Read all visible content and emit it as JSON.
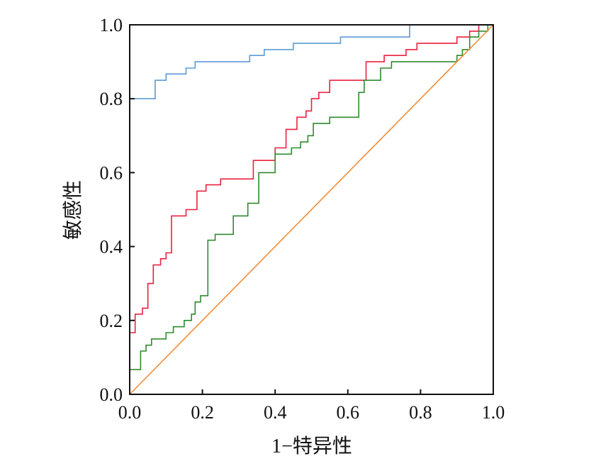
{
  "chart_data": {
    "type": "line",
    "xlabel": "1−特异性",
    "ylabel": "敏感性",
    "xlim": [
      0.0,
      1.0
    ],
    "ylim": [
      0.0,
      1.0
    ],
    "grid": false,
    "xticks": [
      "0.0",
      "0.2",
      "0.4",
      "0.6",
      "0.8",
      "1.0"
    ],
    "yticks": [
      "0.0",
      "0.2",
      "0.4",
      "0.6",
      "0.8",
      "1.0"
    ],
    "series": [
      {
        "color": "#5b9bd5",
        "step": true,
        "points": [
          [
            0,
            0.8
          ],
          [
            0.07,
            0.8
          ],
          [
            0.07,
            0.85
          ],
          [
            0.1,
            0.85
          ],
          [
            0.1,
            0.867
          ],
          [
            0.155,
            0.867
          ],
          [
            0.155,
            0.883
          ],
          [
            0.18,
            0.883
          ],
          [
            0.18,
            0.9
          ],
          [
            0.21,
            0.9
          ],
          [
            0.21,
            0.9
          ],
          [
            0.33,
            0.9
          ],
          [
            0.33,
            0.917
          ],
          [
            0.37,
            0.917
          ],
          [
            0.37,
            0.933
          ],
          [
            0.45,
            0.933
          ],
          [
            0.45,
            0.95
          ],
          [
            0.58,
            0.95
          ],
          [
            0.58,
            0.967
          ],
          [
            0.77,
            0.967
          ],
          [
            0.77,
            1.0
          ],
          [
            1.0,
            1.0
          ]
        ]
      },
      {
        "color": "#e8213f",
        "step": true,
        "points": [
          [
            0,
            0.167
          ],
          [
            0.015,
            0.167
          ],
          [
            0.015,
            0.217
          ],
          [
            0.035,
            0.217
          ],
          [
            0.035,
            0.233
          ],
          [
            0.05,
            0.233
          ],
          [
            0.05,
            0.3
          ],
          [
            0.065,
            0.3
          ],
          [
            0.065,
            0.35
          ],
          [
            0.085,
            0.35
          ],
          [
            0.085,
            0.367
          ],
          [
            0.1,
            0.367
          ],
          [
            0.1,
            0.383
          ],
          [
            0.115,
            0.383
          ],
          [
            0.115,
            0.483
          ],
          [
            0.155,
            0.483
          ],
          [
            0.155,
            0.5
          ],
          [
            0.185,
            0.5
          ],
          [
            0.185,
            0.55
          ],
          [
            0.21,
            0.55
          ],
          [
            0.21,
            0.567
          ],
          [
            0.25,
            0.567
          ],
          [
            0.25,
            0.583
          ],
          [
            0.34,
            0.583
          ],
          [
            0.34,
            0.633
          ],
          [
            0.4,
            0.633
          ],
          [
            0.4,
            0.667
          ],
          [
            0.43,
            0.667
          ],
          [
            0.43,
            0.717
          ],
          [
            0.46,
            0.717
          ],
          [
            0.46,
            0.75
          ],
          [
            0.485,
            0.75
          ],
          [
            0.485,
            0.767
          ],
          [
            0.5,
            0.767
          ],
          [
            0.5,
            0.8
          ],
          [
            0.52,
            0.8
          ],
          [
            0.52,
            0.817
          ],
          [
            0.55,
            0.817
          ],
          [
            0.55,
            0.85
          ],
          [
            0.65,
            0.85
          ],
          [
            0.65,
            0.9
          ],
          [
            0.7,
            0.9
          ],
          [
            0.7,
            0.917
          ],
          [
            0.76,
            0.917
          ],
          [
            0.76,
            0.933
          ],
          [
            0.79,
            0.933
          ],
          [
            0.79,
            0.95
          ],
          [
            0.9,
            0.95
          ],
          [
            0.9,
            0.967
          ],
          [
            0.935,
            0.967
          ],
          [
            0.935,
            0.983
          ],
          [
            0.96,
            0.983
          ],
          [
            0.96,
            1.0
          ],
          [
            1.0,
            1.0
          ]
        ]
      },
      {
        "color": "#2e8b2e",
        "step": true,
        "points": [
          [
            0,
            0.067
          ],
          [
            0.03,
            0.067
          ],
          [
            0.03,
            0.117
          ],
          [
            0.045,
            0.117
          ],
          [
            0.045,
            0.133
          ],
          [
            0.06,
            0.133
          ],
          [
            0.06,
            0.15
          ],
          [
            0.1,
            0.15
          ],
          [
            0.1,
            0.167
          ],
          [
            0.12,
            0.167
          ],
          [
            0.12,
            0.183
          ],
          [
            0.15,
            0.183
          ],
          [
            0.15,
            0.2
          ],
          [
            0.17,
            0.2
          ],
          [
            0.17,
            0.217
          ],
          [
            0.18,
            0.217
          ],
          [
            0.18,
            0.25
          ],
          [
            0.195,
            0.25
          ],
          [
            0.195,
            0.267
          ],
          [
            0.215,
            0.267
          ],
          [
            0.215,
            0.417
          ],
          [
            0.235,
            0.417
          ],
          [
            0.235,
            0.433
          ],
          [
            0.285,
            0.433
          ],
          [
            0.285,
            0.483
          ],
          [
            0.325,
            0.483
          ],
          [
            0.325,
            0.517
          ],
          [
            0.355,
            0.517
          ],
          [
            0.355,
            0.6
          ],
          [
            0.4,
            0.6
          ],
          [
            0.4,
            0.65
          ],
          [
            0.445,
            0.65
          ],
          [
            0.445,
            0.667
          ],
          [
            0.47,
            0.667
          ],
          [
            0.47,
            0.683
          ],
          [
            0.49,
            0.683
          ],
          [
            0.49,
            0.7
          ],
          [
            0.505,
            0.7
          ],
          [
            0.505,
            0.733
          ],
          [
            0.55,
            0.733
          ],
          [
            0.55,
            0.75
          ],
          [
            0.63,
            0.75
          ],
          [
            0.63,
            0.817
          ],
          [
            0.645,
            0.817
          ],
          [
            0.645,
            0.85
          ],
          [
            0.69,
            0.85
          ],
          [
            0.69,
            0.883
          ],
          [
            0.72,
            0.883
          ],
          [
            0.72,
            0.9
          ],
          [
            0.76,
            0.9
          ],
          [
            0.76,
            0.9
          ],
          [
            0.9,
            0.9
          ],
          [
            0.9,
            0.917
          ],
          [
            0.915,
            0.917
          ],
          [
            0.915,
            0.933
          ],
          [
            0.935,
            0.933
          ],
          [
            0.935,
            0.967
          ],
          [
            0.96,
            0.967
          ],
          [
            0.96,
            0.983
          ],
          [
            0.985,
            0.983
          ],
          [
            0.985,
            1.0
          ],
          [
            1.0,
            1.0
          ]
        ]
      },
      {
        "color": "#f28c38",
        "step": false,
        "points": [
          [
            0,
            0
          ],
          [
            1,
            1
          ]
        ]
      }
    ]
  }
}
